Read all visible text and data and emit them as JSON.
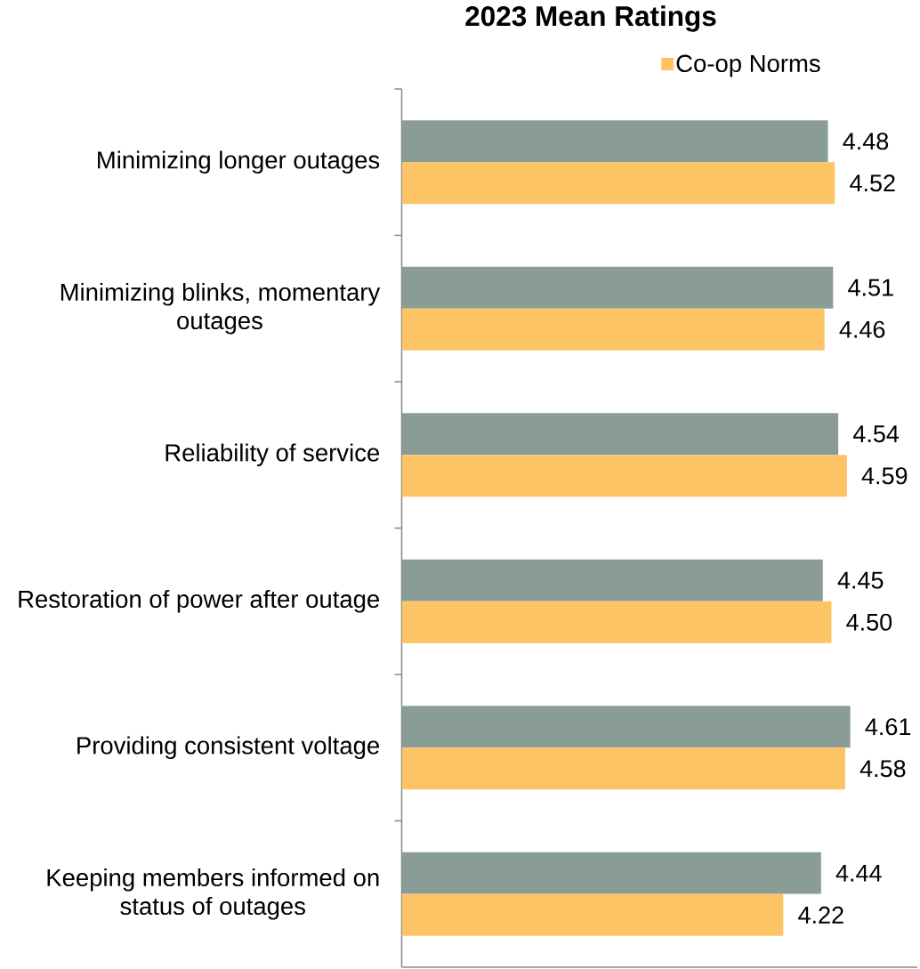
{
  "chart_data": {
    "type": "bar",
    "title": "2023 Mean Ratings",
    "orientation": "horizontal",
    "categories": [
      "Minimizing longer outages",
      "Minimizing blinks, momentary outages",
      "Reliability of service",
      "Restoration of power after outage",
      "Providing consistent voltage",
      "Keeping members informed on status of outages"
    ],
    "series": [
      {
        "color": "#8a9c96",
        "values": [
          4.48,
          4.51,
          4.54,
          4.45,
          4.61,
          4.44
        ],
        "value_labels": [
          "4.48",
          "4.51",
          "4.54",
          "4.45",
          "4.61",
          "4.44"
        ]
      },
      {
        "name": "Co-op Norms",
        "color": "#fcc464",
        "values": [
          4.52,
          4.46,
          4.59,
          4.5,
          4.58,
          4.22
        ],
        "value_labels": [
          "4.52",
          "4.46",
          "4.59",
          "4.50",
          "4.58",
          "4.22"
        ]
      }
    ],
    "xlim": [
      2,
      5
    ],
    "legend": "top",
    "tick_labels": "y"
  }
}
